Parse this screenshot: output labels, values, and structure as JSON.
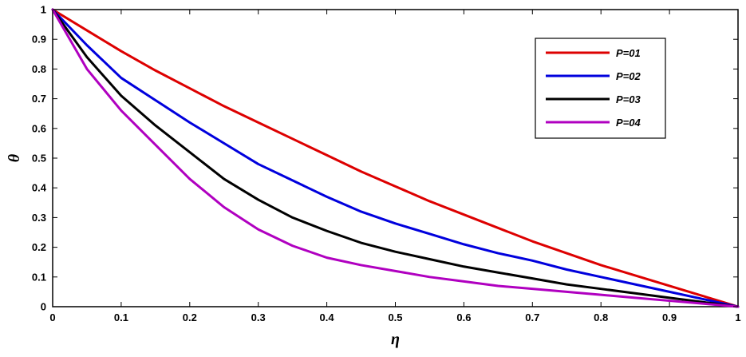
{
  "chart_data": {
    "type": "line",
    "xlabel": "η",
    "ylabel": "θ",
    "xlim": [
      0,
      1
    ],
    "ylim": [
      0,
      1
    ],
    "xticks": [
      "0",
      "0.1",
      "0.2",
      "0.3",
      "0.4",
      "0.5",
      "0.6",
      "0.7",
      "0.8",
      "0.9",
      "1"
    ],
    "yticks": [
      "0",
      "0.1",
      "0.2",
      "0.3",
      "0.4",
      "0.5",
      "0.6",
      "0.7",
      "0.8",
      "0.9",
      "1"
    ],
    "grid": false,
    "legend_position": "top-right",
    "x": [
      0,
      0.05,
      0.1,
      0.15,
      0.2,
      0.25,
      0.3,
      0.35,
      0.4,
      0.45,
      0.5,
      0.55,
      0.6,
      0.65,
      0.7,
      0.75,
      0.8,
      0.85,
      0.9,
      0.95,
      1
    ],
    "series": [
      {
        "name": "P=01",
        "color": "#dd0000",
        "values": [
          1.0,
          0.93,
          0.86,
          0.795,
          0.735,
          0.675,
          0.62,
          0.565,
          0.51,
          0.455,
          0.405,
          0.355,
          0.31,
          0.265,
          0.22,
          0.18,
          0.14,
          0.105,
          0.07,
          0.035,
          0.0
        ]
      },
      {
        "name": "P=02",
        "color": "#0000dd",
        "values": [
          1.0,
          0.88,
          0.77,
          0.695,
          0.62,
          0.55,
          0.48,
          0.425,
          0.37,
          0.32,
          0.28,
          0.245,
          0.21,
          0.18,
          0.155,
          0.125,
          0.1,
          0.075,
          0.05,
          0.025,
          0.0
        ]
      },
      {
        "name": "P=03",
        "color": "#000000",
        "values": [
          1.0,
          0.84,
          0.71,
          0.61,
          0.52,
          0.43,
          0.36,
          0.3,
          0.255,
          0.215,
          0.185,
          0.16,
          0.135,
          0.115,
          0.095,
          0.075,
          0.06,
          0.045,
          0.03,
          0.015,
          0.0
        ]
      },
      {
        "name": "P=04",
        "color": "#b000c0",
        "values": [
          1.0,
          0.8,
          0.66,
          0.545,
          0.43,
          0.335,
          0.26,
          0.205,
          0.165,
          0.14,
          0.12,
          0.1,
          0.085,
          0.07,
          0.06,
          0.05,
          0.04,
          0.03,
          0.02,
          0.01,
          0.0
        ]
      }
    ]
  }
}
